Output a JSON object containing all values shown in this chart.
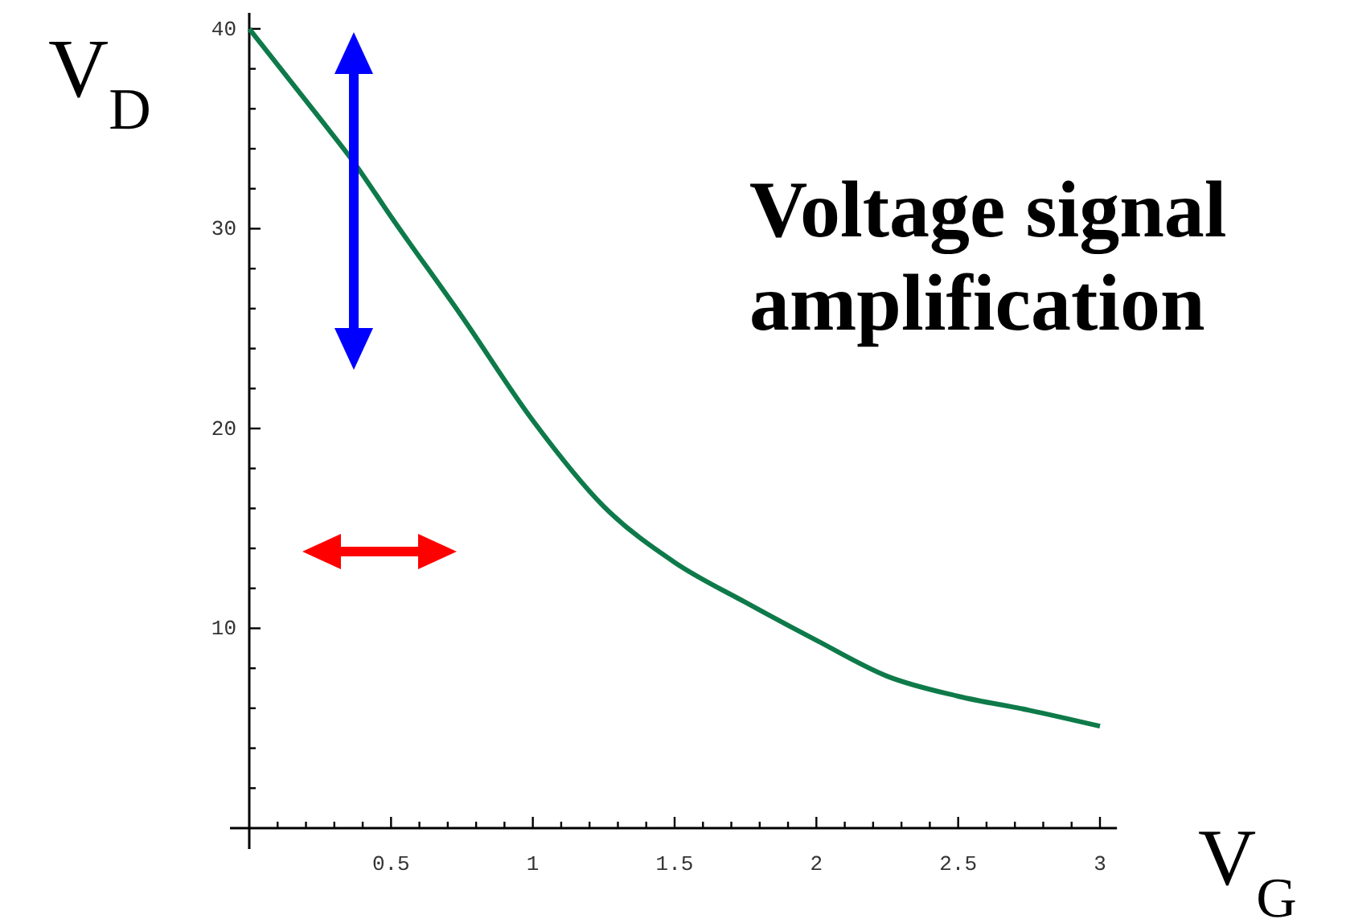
{
  "chart_data": {
    "type": "line",
    "title": "Voltage signal amplification",
    "xlabel": "V$_{G}$",
    "ylabel": "V$_{D}$",
    "x": [
      0,
      0.25,
      0.37,
      0.5,
      0.75,
      1,
      1.25,
      1.5,
      1.75,
      2,
      2.25,
      2.5,
      2.75,
      3
    ],
    "series": [
      {
        "color": "#0e7a4a",
        "values": [
          40,
          35.5,
          33.3,
          30.6,
          25.6,
          20.4,
          16.1,
          13.3,
          11.3,
          9.4,
          7.6,
          6.6,
          5.9,
          5.1
        ]
      }
    ],
    "xlim": [
      0,
      3.06
    ],
    "ylim": [
      0,
      40.8
    ],
    "xticks": [
      {
        "value": 0.1,
        "label": null
      },
      {
        "value": 0.2,
        "label": null
      },
      {
        "value": 0.3,
        "label": null
      },
      {
        "value": 0.4,
        "label": null
      },
      0.5,
      {
        "value": 0.6,
        "label": null
      },
      {
        "value": 0.7,
        "label": null
      },
      {
        "value": 0.8,
        "label": null
      },
      {
        "value": 0.9,
        "label": null
      },
      1,
      {
        "value": 1.1,
        "label": null
      },
      {
        "value": 1.2,
        "label": null
      },
      {
        "value": 1.3,
        "label": null
      },
      {
        "value": 1.4,
        "label": null
      },
      1.5,
      {
        "value": 1.6,
        "label": null
      },
      {
        "value": 1.7,
        "label": null
      },
      {
        "value": 1.8,
        "label": null
      },
      {
        "value": 1.9,
        "label": null
      },
      2,
      {
        "value": 2.1,
        "label": null
      },
      {
        "value": 2.2,
        "label": null
      },
      {
        "value": 2.3,
        "label": null
      },
      {
        "value": 2.4,
        "label": null
      },
      2.5,
      {
        "value": 2.6,
        "label": null
      },
      {
        "value": 2.7,
        "label": null
      },
      {
        "value": 2.8,
        "label": null
      },
      {
        "value": 2.9,
        "label": null
      },
      3
    ],
    "yticks": [
      {
        "value": 2,
        "label": null
      },
      {
        "value": 4,
        "label": null
      },
      {
        "value": 6,
        "label": null
      },
      {
        "value": 8,
        "label": null
      },
      10,
      {
        "value": 12,
        "label": null
      },
      {
        "value": 14,
        "label": null
      },
      {
        "value": 16,
        "label": null
      },
      {
        "value": 18,
        "label": null
      },
      20,
      {
        "value": 22,
        "label": null
      },
      {
        "value": 24,
        "label": null
      },
      {
        "value": 26,
        "label": null
      },
      {
        "value": 28,
        "label": null
      },
      30,
      {
        "value": 32,
        "label": null
      },
      {
        "value": 34,
        "label": null
      },
      {
        "value": 36,
        "label": null
      },
      {
        "value": 38,
        "label": null
      },
      40
    ],
    "grid": false,
    "marker": "none",
    "line_style": "solid"
  }
}
